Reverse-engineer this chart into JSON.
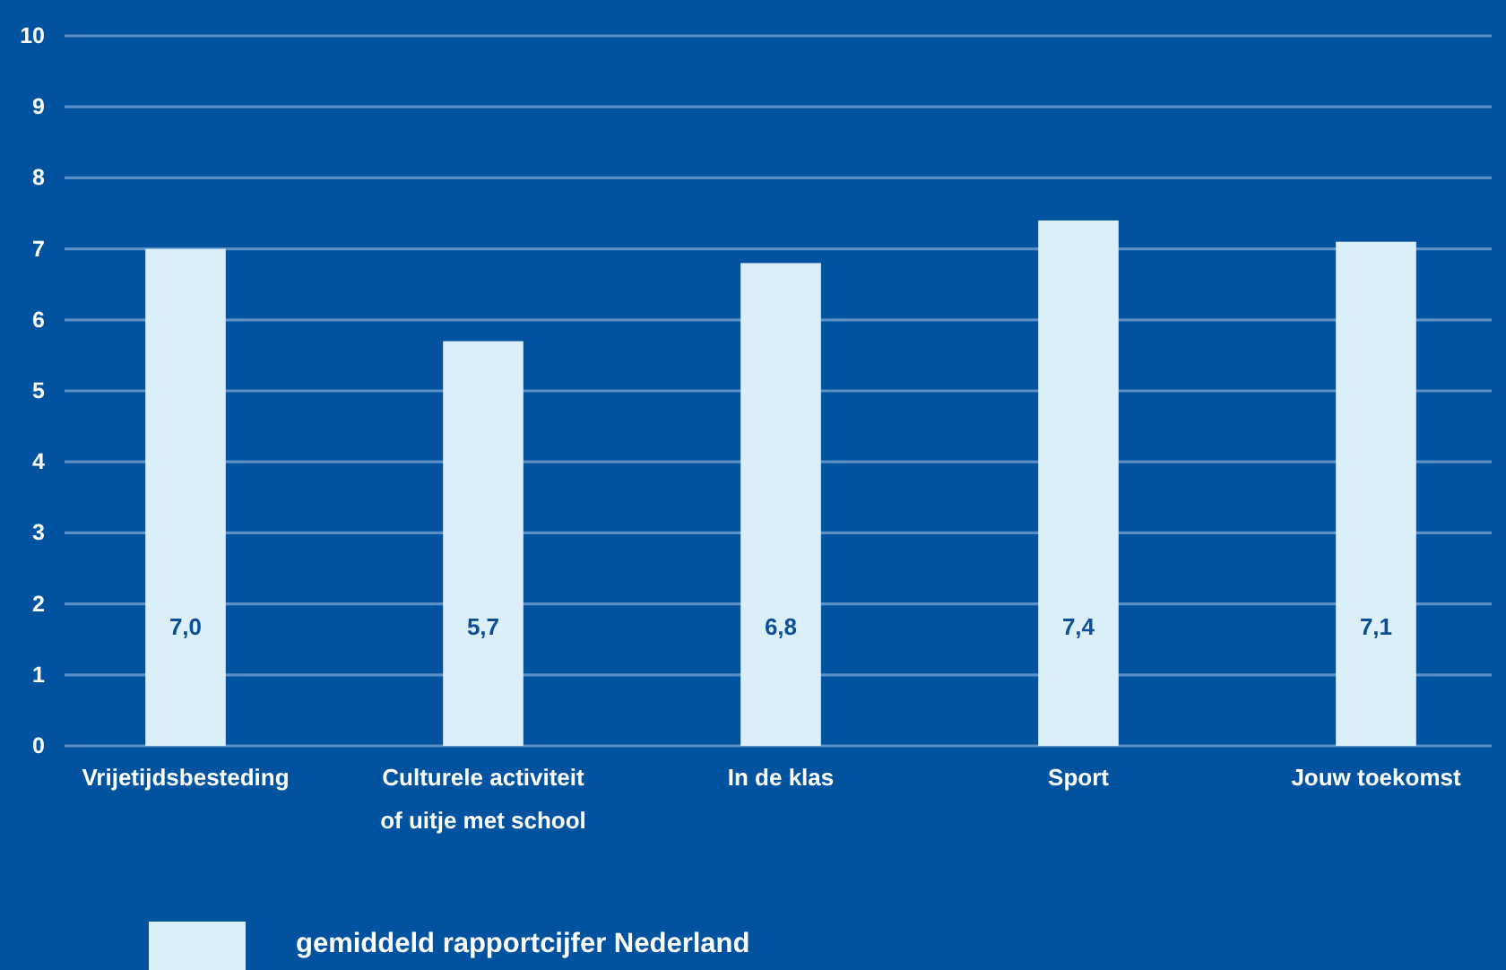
{
  "chart_data": {
    "type": "bar",
    "categories": [
      "Vrijetijdsbesteding",
      "Culturele activiteit of uitje met school",
      "In de klas",
      "Sport",
      "Jouw toekomst"
    ],
    "series": [
      {
        "name": "gemiddeld rapportcijfer Nederland",
        "color": "#dbeff9",
        "values": [
          7.0,
          5.7,
          6.8,
          7.4,
          7.1
        ],
        "value_labels": [
          "7,0",
          "5,7",
          "6,8",
          "7,4",
          "7,1"
        ]
      }
    ],
    "ylim": [
      0,
      10
    ],
    "yticks": [
      0,
      1,
      2,
      3,
      4,
      5,
      6,
      7,
      8,
      9,
      10
    ],
    "grid": "y",
    "legend": "bottom"
  }
}
